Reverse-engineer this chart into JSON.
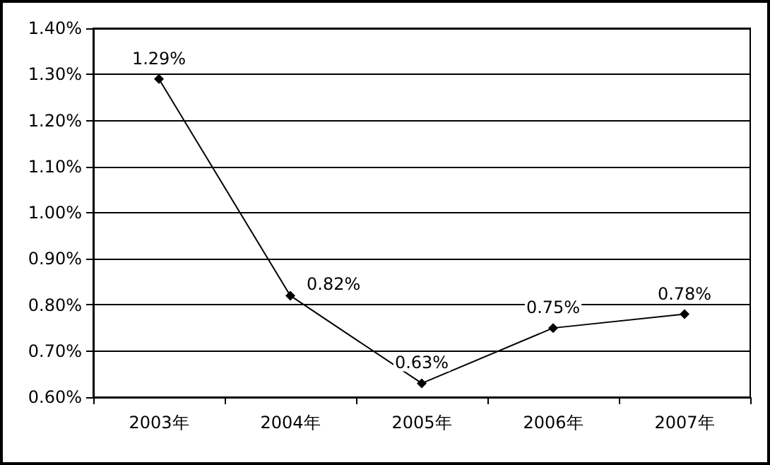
{
  "chart_data": {
    "type": "line",
    "categories": [
      "2003年",
      "2004年",
      "2005年",
      "2006年",
      "2007年"
    ],
    "series": [
      {
        "color": "#000000",
        "values": [
          1.29,
          0.82,
          0.63,
          0.75,
          0.78
        ],
        "value_labels": [
          "1.29%",
          "0.82%",
          "0.63%",
          "0.75%",
          "0.78%"
        ]
      }
    ],
    "ylim": [
      0.6,
      1.4
    ],
    "yticks": [
      {
        "value": 0.6,
        "label": "0.60%"
      },
      {
        "value": 0.7,
        "label": "0.70%"
      },
      {
        "value": 0.8,
        "label": "0.80%"
      },
      {
        "value": 0.9,
        "label": "0.90%"
      },
      {
        "value": 1.0,
        "label": "1.00%"
      },
      {
        "value": 1.1,
        "label": "1.10%"
      },
      {
        "value": 1.2,
        "label": "1.20%"
      },
      {
        "value": 1.3,
        "label": "1.30%"
      },
      {
        "value": 1.4,
        "label": "1.40%"
      }
    ],
    "grid": "y",
    "marker": "diamond",
    "line_style": "solid"
  }
}
